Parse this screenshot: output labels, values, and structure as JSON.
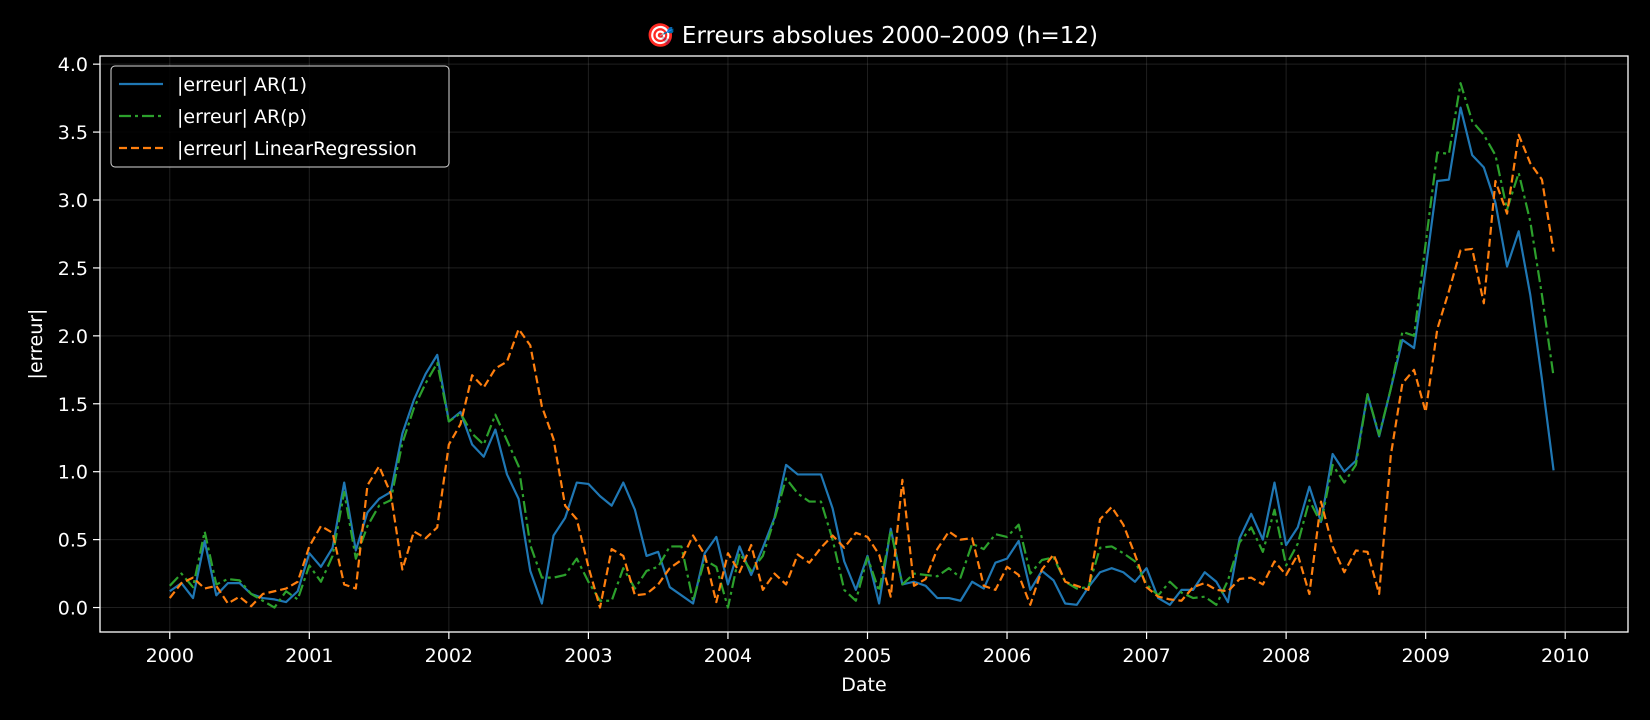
{
  "chart_data": {
    "type": "line",
    "title": "🎯 Erreurs absolues 2000–2009 (h=12)",
    "xlabel": "Date",
    "ylabel": "|erreur|",
    "x_start": "2000-01",
    "x_frequency": "monthly",
    "xlim": [
      "2000",
      "2010"
    ],
    "ylim": [
      -0.18,
      4.06
    ],
    "x_ticks": [
      "2000",
      "2001",
      "2002",
      "2003",
      "2004",
      "2005",
      "2006",
      "2007",
      "2008",
      "2009",
      "2010"
    ],
    "y_ticks": [
      "0.0",
      "0.5",
      "1.0",
      "1.5",
      "2.0",
      "2.5",
      "3.0",
      "3.5",
      "4.0"
    ],
    "grid": true,
    "legend_position": "top-left",
    "series": [
      {
        "name": "|erreur| AR(1)",
        "color": "#1f77b4",
        "dash": "solid",
        "values": [
          0.12,
          0.18,
          0.07,
          0.49,
          0.09,
          0.18,
          0.18,
          0.1,
          0.07,
          0.06,
          0.04,
          0.12,
          0.4,
          0.3,
          0.44,
          0.92,
          0.42,
          0.7,
          0.8,
          0.85,
          1.28,
          1.53,
          1.72,
          1.86,
          1.37,
          1.44,
          1.2,
          1.11,
          1.31,
          0.98,
          0.8,
          0.27,
          0.03,
          0.53,
          0.66,
          0.92,
          0.91,
          0.82,
          0.75,
          0.92,
          0.72,
          0.38,
          0.41,
          0.15,
          0.09,
          0.03,
          0.4,
          0.52,
          0.17,
          0.45,
          0.24,
          0.44,
          0.66,
          1.05,
          0.98,
          0.98,
          0.98,
          0.73,
          0.34,
          0.13,
          0.38,
          0.03,
          0.58,
          0.17,
          0.19,
          0.16,
          0.07,
          0.07,
          0.05,
          0.19,
          0.14,
          0.33,
          0.36,
          0.49,
          0.13,
          0.27,
          0.2,
          0.03,
          0.02,
          0.15,
          0.26,
          0.29,
          0.26,
          0.19,
          0.29,
          0.07,
          0.02,
          0.13,
          0.13,
          0.26,
          0.19,
          0.04,
          0.51,
          0.69,
          0.5,
          0.92,
          0.46,
          0.59,
          0.89,
          0.63,
          1.13,
          1.0,
          1.08,
          1.57,
          1.26,
          1.61,
          1.97,
          1.91,
          2.49,
          3.14,
          3.15,
          3.68,
          3.33,
          3.24,
          2.98,
          2.51,
          2.77,
          2.3,
          1.68,
          1.01
        ]
      },
      {
        "name": "|erreur| AR(p)",
        "color": "#2ca02c",
        "dash": "dashdot",
        "values": [
          0.16,
          0.25,
          0.15,
          0.56,
          0.17,
          0.21,
          0.2,
          0.1,
          0.05,
          0.0,
          0.12,
          0.06,
          0.31,
          0.19,
          0.38,
          0.85,
          0.36,
          0.6,
          0.75,
          0.79,
          1.21,
          1.47,
          1.65,
          1.8,
          1.37,
          1.43,
          1.28,
          1.2,
          1.42,
          1.23,
          1.04,
          0.46,
          0.22,
          0.22,
          0.24,
          0.36,
          0.19,
          0.05,
          0.05,
          0.29,
          0.14,
          0.27,
          0.3,
          0.45,
          0.45,
          0.05,
          0.35,
          0.3,
          0.0,
          0.4,
          0.27,
          0.38,
          0.65,
          0.95,
          0.84,
          0.78,
          0.78,
          0.5,
          0.13,
          0.05,
          0.37,
          0.12,
          0.57,
          0.17,
          0.25,
          0.24,
          0.23,
          0.29,
          0.22,
          0.47,
          0.43,
          0.54,
          0.52,
          0.61,
          0.25,
          0.35,
          0.37,
          0.19,
          0.14,
          0.15,
          0.44,
          0.45,
          0.4,
          0.34,
          0.17,
          0.09,
          0.19,
          0.11,
          0.07,
          0.08,
          0.02,
          0.2,
          0.48,
          0.59,
          0.41,
          0.72,
          0.31,
          0.47,
          0.79,
          0.62,
          1.05,
          0.92,
          1.05,
          1.57,
          1.27,
          1.61,
          2.03,
          2.0,
          2.68,
          3.35,
          3.34,
          3.86,
          3.58,
          3.48,
          3.33,
          2.93,
          3.2,
          2.84,
          2.3,
          1.7
        ]
      },
      {
        "name": "|erreur| LinearRegression",
        "color": "#ff7f0e",
        "dash": "dashed",
        "values": [
          0.07,
          0.18,
          0.22,
          0.14,
          0.16,
          0.03,
          0.08,
          0.01,
          0.1,
          0.12,
          0.14,
          0.19,
          0.45,
          0.6,
          0.55,
          0.17,
          0.14,
          0.9,
          1.04,
          0.84,
          0.28,
          0.56,
          0.51,
          0.59,
          1.2,
          1.35,
          1.71,
          1.62,
          1.76,
          1.81,
          2.05,
          1.93,
          1.48,
          1.24,
          0.75,
          0.65,
          0.3,
          0.0,
          0.43,
          0.38,
          0.09,
          0.1,
          0.17,
          0.29,
          0.35,
          0.53,
          0.39,
          0.04,
          0.4,
          0.26,
          0.46,
          0.13,
          0.25,
          0.17,
          0.39,
          0.33,
          0.44,
          0.53,
          0.44,
          0.55,
          0.52,
          0.39,
          0.08,
          0.94,
          0.16,
          0.21,
          0.43,
          0.56,
          0.5,
          0.51,
          0.16,
          0.13,
          0.3,
          0.24,
          0.02,
          0.28,
          0.39,
          0.19,
          0.16,
          0.13,
          0.65,
          0.74,
          0.61,
          0.39,
          0.15,
          0.08,
          0.06,
          0.05,
          0.15,
          0.18,
          0.13,
          0.12,
          0.21,
          0.22,
          0.17,
          0.34,
          0.24,
          0.39,
          0.1,
          0.78,
          0.45,
          0.26,
          0.42,
          0.41,
          0.1,
          1.12,
          1.65,
          1.75,
          1.44,
          2.05,
          2.33,
          2.63,
          2.64,
          2.24,
          3.14,
          2.9,
          3.48,
          3.27,
          3.15,
          2.62
        ]
      }
    ]
  }
}
